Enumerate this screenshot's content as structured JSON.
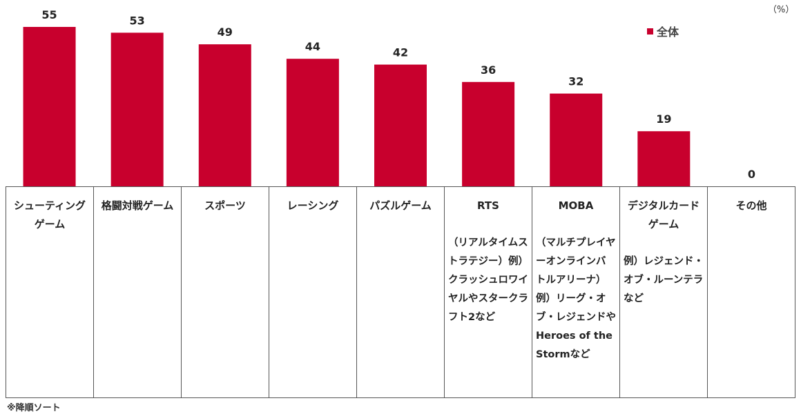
{
  "chart_data": {
    "type": "bar",
    "unit": "（%）",
    "categories": [
      "シューティングゲーム",
      "格闘対戦ゲーム",
      "スポーツ",
      "レーシング",
      "パズルゲーム",
      "RTS",
      "MOBA",
      "デジタルカードゲーム",
      "その他"
    ],
    "descriptions": [
      "",
      "",
      "",
      "",
      "",
      "（リアルタイムストラテジー）例）クラッシュロワイヤルやスタークラフト2など",
      "（マルチプレイヤーオンラインバトルアリーナ）例）リーグ・オブ・レジェンドやHeroes of the Stormなど",
      "例）レジェンド・オブ・ルーンテラなど",
      ""
    ],
    "series": [
      {
        "name": "全体",
        "values": [
          55,
          53,
          49,
          44,
          42,
          36,
          32,
          19,
          0
        ]
      }
    ],
    "ylim": [
      0,
      55
    ],
    "bar_color": "#c8002d",
    "legend_position": "top-right",
    "grid": false,
    "note": "※降順ソート"
  }
}
